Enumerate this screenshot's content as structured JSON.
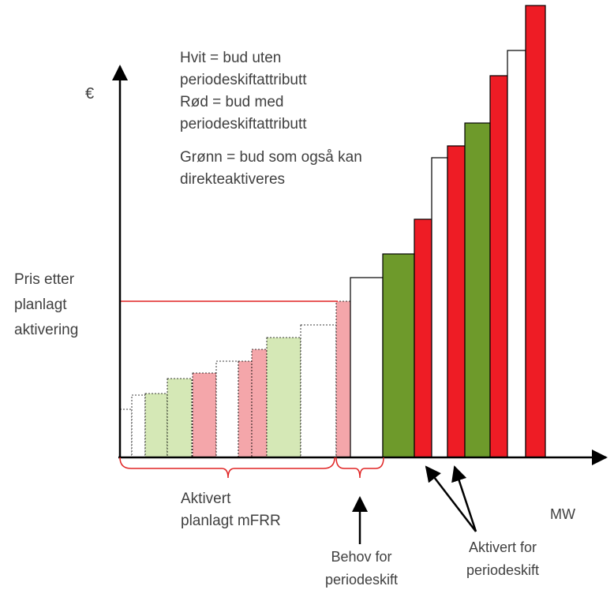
{
  "colors": {
    "white": "#ffffff",
    "red": "#ee1c25",
    "green": "#6e9a2b",
    "light_red": "#f4a6aa",
    "light_green": "#d5e8b6",
    "axis": "#000000",
    "border": "#000000",
    "bracket": "#e02424",
    "text": "#404040"
  },
  "axes": {
    "y_label": "€",
    "x_label": "MW"
  },
  "legend": {
    "lines": [
      "Hvit = bud uten",
      "periodeskiftattributt",
      "Rød = bud med",
      "periodeskiftattributt",
      "Grønn = bud som også kan",
      "direkteaktiveres"
    ]
  },
  "price_label": {
    "lines": [
      "Pris etter",
      "planlagt",
      "aktivering"
    ]
  },
  "labels": {
    "activated_planned": [
      "Aktivert",
      "planlagt mFRR"
    ],
    "need_period_shift": [
      "Behov for",
      "periodeskift"
    ],
    "activated_period_shift": [
      "Aktivert for",
      "periodeskift"
    ]
  },
  "bids": [
    {
      "kind": "white",
      "faded": true
    },
    {
      "kind": "white",
      "faded": true
    },
    {
      "kind": "green",
      "faded": true
    },
    {
      "kind": "green",
      "faded": true
    },
    {
      "kind": "red",
      "faded": true
    },
    {
      "kind": "white",
      "faded": true
    },
    {
      "kind": "red",
      "faded": true
    },
    {
      "kind": "red",
      "faded": true
    },
    {
      "kind": "green",
      "faded": true
    },
    {
      "kind": "white",
      "faded": true
    },
    {
      "kind": "red",
      "faded": true
    },
    {
      "kind": "white",
      "faded": false
    },
    {
      "kind": "green",
      "faded": false
    },
    {
      "kind": "red",
      "faded": false
    },
    {
      "kind": "white",
      "faded": false
    },
    {
      "kind": "red",
      "faded": false
    },
    {
      "kind": "green",
      "faded": false
    },
    {
      "kind": "red",
      "faded": false
    },
    {
      "kind": "white",
      "faded": false
    },
    {
      "kind": "red",
      "faded": false
    }
  ]
}
